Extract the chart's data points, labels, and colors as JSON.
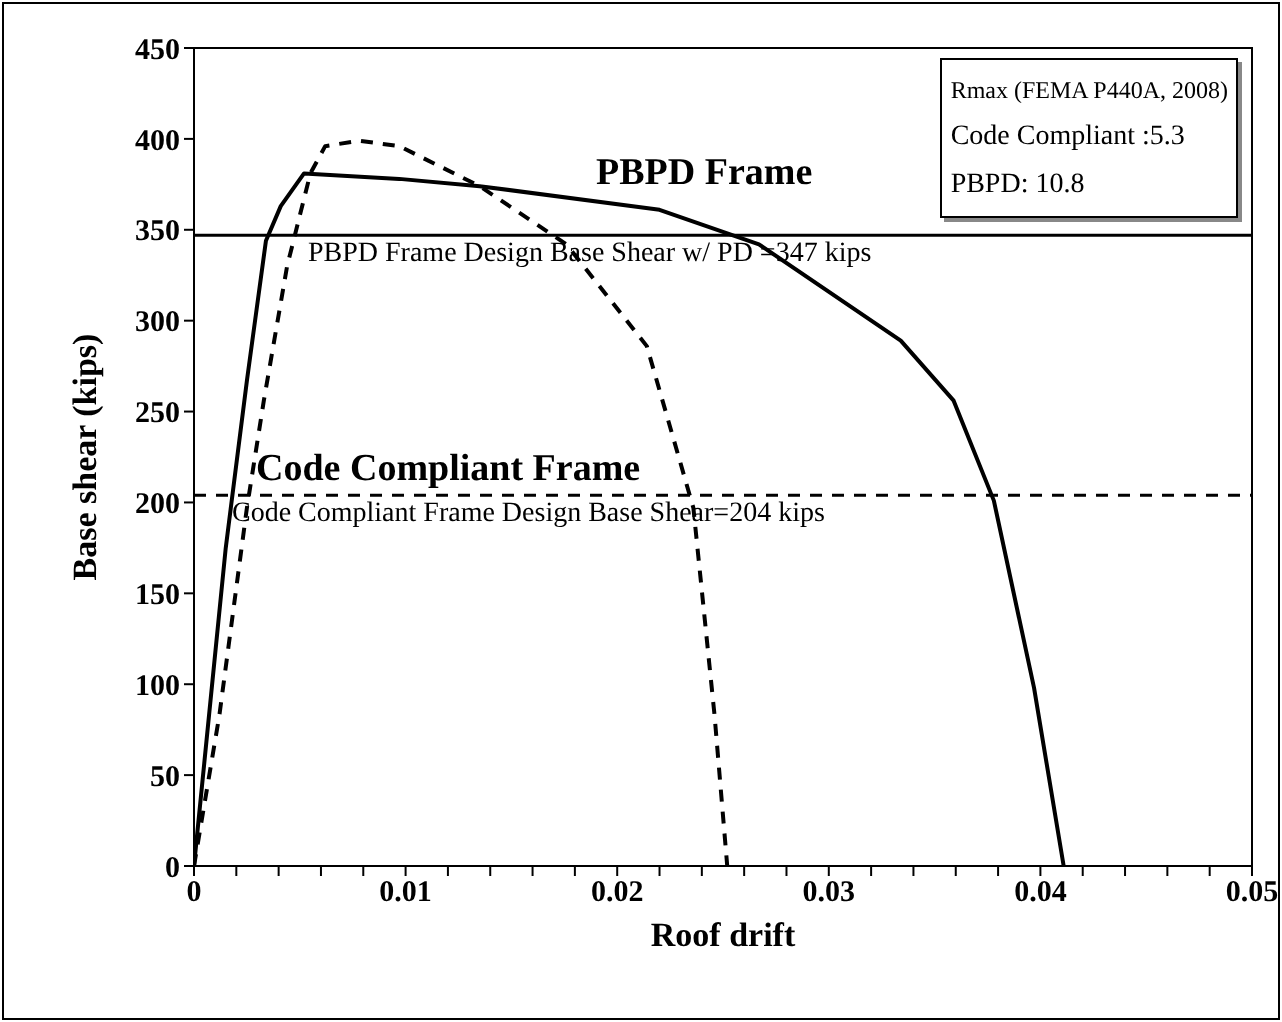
{
  "chart_data": {
    "type": "line",
    "xlabel": "Roof drift",
    "ylabel": "Base shear (kips)",
    "xlim": [
      0,
      0.05
    ],
    "ylim": [
      0,
      450
    ],
    "xticks": [
      0,
      {
        "value": 0.002,
        "label": null
      },
      {
        "value": 0.004,
        "label": null
      },
      {
        "value": 0.006,
        "label": null
      },
      {
        "value": 0.008,
        "label": null
      },
      0.01,
      {
        "value": 0.012,
        "label": null
      },
      {
        "value": 0.014,
        "label": null
      },
      {
        "value": 0.016,
        "label": null
      },
      {
        "value": 0.018,
        "label": null
      },
      0.02,
      {
        "value": 0.022,
        "label": null
      },
      {
        "value": 0.024,
        "label": null
      },
      {
        "value": 0.026,
        "label": null
      },
      {
        "value": 0.028,
        "label": null
      },
      0.03,
      {
        "value": 0.032,
        "label": null
      },
      {
        "value": 0.034,
        "label": null
      },
      {
        "value": 0.036,
        "label": null
      },
      {
        "value": 0.038,
        "label": null
      },
      0.04,
      {
        "value": 0.042,
        "label": null
      },
      {
        "value": 0.044,
        "label": null
      },
      {
        "value": 0.046,
        "label": null
      },
      {
        "value": 0.048,
        "label": null
      },
      0.05
    ],
    "yticks": [
      0,
      50,
      100,
      150,
      200,
      250,
      300,
      350,
      400,
      450
    ],
    "legend": false,
    "marker": "none",
    "series": [
      {
        "name": "PBPD Frame",
        "color": "#000000",
        "line_style": "solid",
        "x": [
          0,
          0.0015,
          0.0025,
          0.0034,
          0.0041,
          0.0052,
          0.0097,
          0.0135,
          0.022,
          0.0267,
          0.0334,
          0.0359,
          0.0378,
          0.0397,
          0.0411
        ],
        "values": [
          0,
          175,
          267,
          344,
          363,
          381,
          378,
          374,
          361,
          342,
          289,
          256,
          201,
          98,
          0
        ]
      },
      {
        "name": "Code Compliant Frame",
        "color": "#000000",
        "line_style": "dashed",
        "x": [
          0,
          0.0012,
          0.0025,
          0.0033,
          0.0044,
          0.0055,
          0.0062,
          0.0078,
          0.0097,
          0.0135,
          0.0176,
          0.0214,
          0.0236,
          0.0246,
          0.0252
        ],
        "values": [
          0,
          83,
          197,
          256,
          330,
          381,
          396,
          399,
          396,
          374,
          342,
          286,
          197,
          83,
          0
        ]
      }
    ],
    "ref_lines": [
      {
        "axis": "y",
        "value": 347,
        "label": "PBPD Frame Design Base Shear w/ PD =347 kips",
        "line_style": "solid",
        "color": "#000000"
      },
      {
        "axis": "y",
        "value": 204,
        "label": "Code Compliant  Frame Design Base Shear=204 kips",
        "line_style": "dashed",
        "color": "#000000"
      }
    ],
    "annotations": [
      "Rmax (FEMA P440A, 2008)",
      "Code Compliant :5.3",
      "PBPD: 10.8"
    ]
  }
}
